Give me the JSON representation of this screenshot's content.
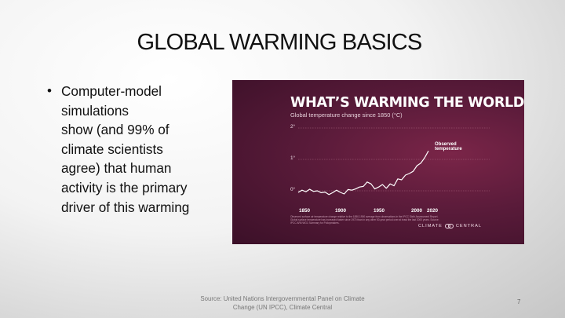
{
  "slide": {
    "title": "GLOBAL WARMING BASICS",
    "bullet_lines": [
      "Computer-model",
      "simulations",
      "show (and 99% of",
      "climate scientists",
      "agree) that human",
      "activity is the primary",
      "driver of this warming"
    ],
    "source_lines": [
      "Source: United Nations Intergovernmental Panel on Climate",
      "Change (UN IPCC), Climate Central"
    ],
    "page_number": "7"
  },
  "figure": {
    "heading": "WHAT’S WARMING THE WORLD?",
    "fineprint": "Observed surface air temperature change relative to the 1850-1900 average from observations in the IPCC Sixth Assessment Report. Global surface temperature has increased faster since 1970 than in any other 50-year period over at least the last 2000 years. Source: IPCC AR6 WG1 Summary for Policymakers.",
    "brand": "CLIMATE CENTRAL",
    "colors": {
      "background": "#4e1733",
      "line": "#ffffff",
      "grid": "#a8647f"
    }
  },
  "chart_data": {
    "type": "line",
    "title": "WHAT’S WARMING THE WORLD?",
    "subtitle": "Global temperature change since 1850 (°C)",
    "xlabel": "",
    "ylabel": "",
    "xlim": [
      1850,
      2020
    ],
    "ylim": [
      0,
      2
    ],
    "x_ticks": [
      "1850",
      "1900",
      "1950",
      "2000",
      "2020"
    ],
    "y_ticks": [
      "0°",
      "1°",
      "2°"
    ],
    "grid": true,
    "series": [
      {
        "name": "Observed temperature",
        "x": [
          1850,
          1855,
          1860,
          1865,
          1870,
          1875,
          1880,
          1885,
          1890,
          1895,
          1900,
          1905,
          1910,
          1915,
          1920,
          1925,
          1930,
          1935,
          1940,
          1945,
          1950,
          1955,
          1960,
          1965,
          1970,
          1975,
          1980,
          1985,
          1990,
          1995,
          2000,
          2005,
          2010,
          2015,
          2020
        ],
        "y": [
          -0.05,
          0.02,
          -0.03,
          0.05,
          -0.02,
          0.0,
          -0.06,
          -0.04,
          -0.12,
          -0.06,
          0.02,
          -0.05,
          -0.1,
          0.04,
          0.02,
          0.06,
          0.12,
          0.14,
          0.28,
          0.22,
          0.06,
          0.12,
          0.2,
          0.08,
          0.22,
          0.16,
          0.38,
          0.35,
          0.5,
          0.55,
          0.62,
          0.8,
          0.88,
          1.05,
          1.27
        ]
      }
    ]
  }
}
